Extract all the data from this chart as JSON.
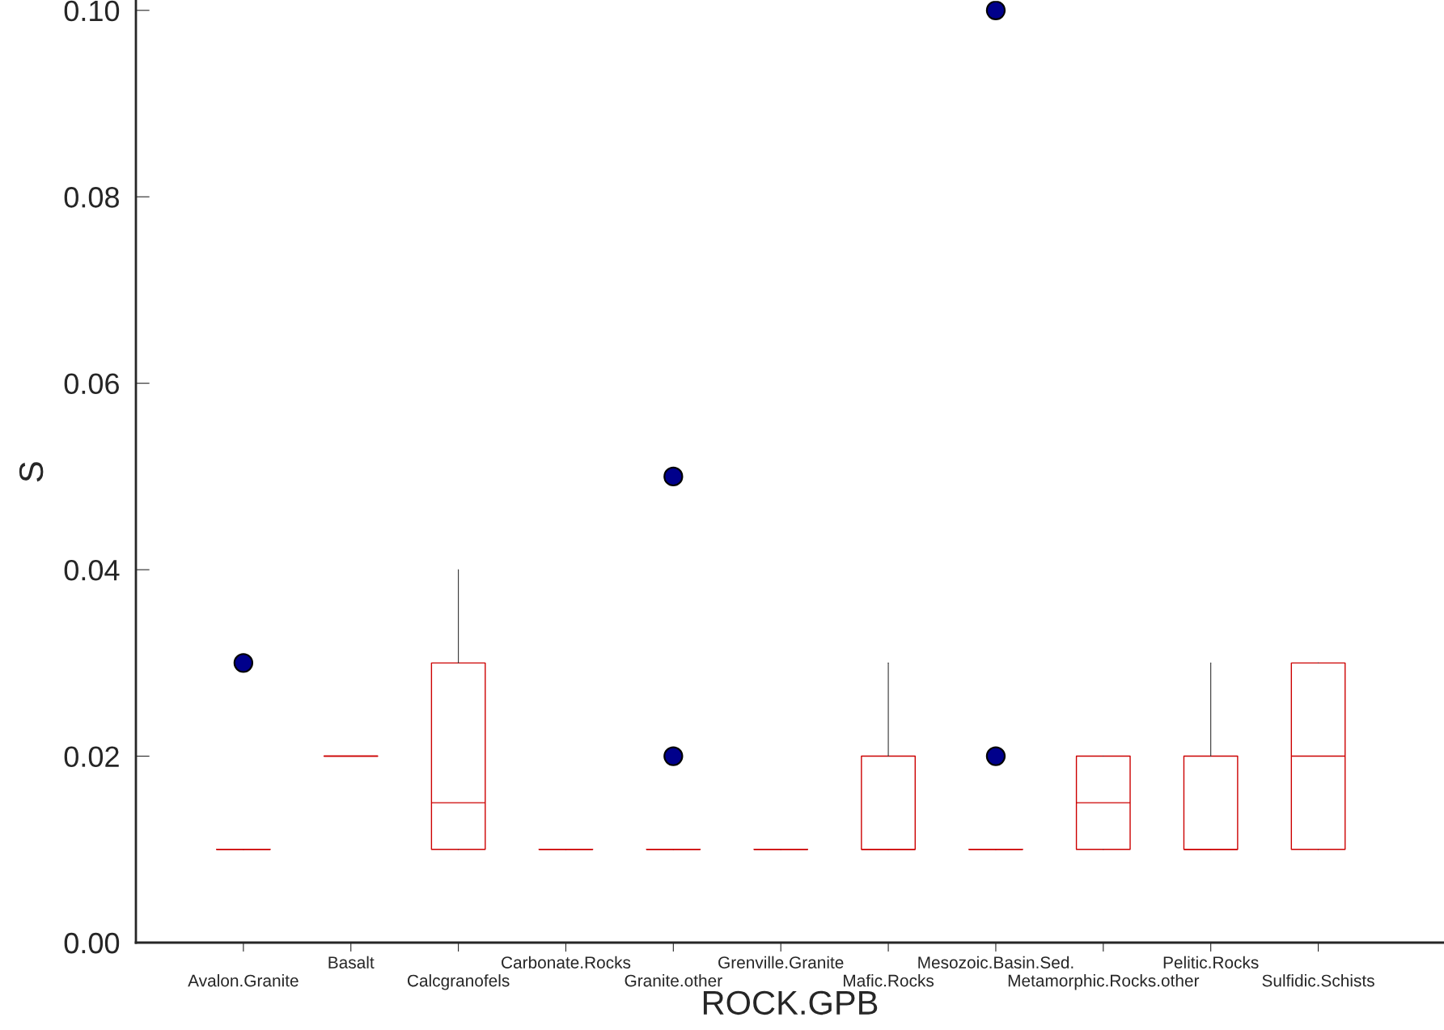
{
  "chart_data": {
    "type": "box",
    "xlabel": "ROCK.GPB",
    "ylabel": "S",
    "categories": [
      "Avalon.Granite",
      "Basalt",
      "Calcgranofels",
      "Carbonate.Rocks",
      "Granite.other",
      "Grenville.Granite",
      "Mafic.Rocks",
      "Mesozoic.Basin.Sed.",
      "Metamorphic.Rocks.other",
      "Pelitic.Rocks",
      "Sulfidic.Schists"
    ],
    "boxes": [
      {
        "low": 0.01,
        "q1": 0.01,
        "median": 0.01,
        "q3": 0.01,
        "high": 0.01,
        "outliers": [
          0.03
        ]
      },
      {
        "low": 0.02,
        "q1": 0.02,
        "median": 0.02,
        "q3": 0.02,
        "high": 0.02
      },
      {
        "low": 0.01,
        "q1": 0.01,
        "median": 0.015,
        "q3": 0.03,
        "high": 0.04
      },
      {
        "low": 0.01,
        "q1": 0.01,
        "median": 0.01,
        "q3": 0.01,
        "high": 0.01
      },
      {
        "low": 0.01,
        "q1": 0.01,
        "median": 0.01,
        "q3": 0.01,
        "high": 0.01,
        "outliers": [
          0.05,
          0.02
        ]
      },
      {
        "low": 0.01,
        "q1": 0.01,
        "median": 0.01,
        "q3": 0.01,
        "high": 0.01
      },
      {
        "low": 0.01,
        "q1": 0.01,
        "median": 0.01,
        "q3": 0.02,
        "high": 0.03
      },
      {
        "low": 0.01,
        "q1": 0.01,
        "median": 0.01,
        "q3": 0.01,
        "high": 0.01,
        "outliers": [
          0.1,
          0.02
        ]
      },
      {
        "low": 0.01,
        "q1": 0.01,
        "median": 0.015,
        "q3": 0.02,
        "high": 0.02
      },
      {
        "low": 0.01,
        "q1": 0.01,
        "median": 0.01,
        "q3": 0.02,
        "high": 0.03
      },
      {
        "low": 0.01,
        "q1": 0.01,
        "median": 0.02,
        "q3": 0.03,
        "high": 0.03
      }
    ],
    "color": "#cc0000",
    "ylim": [
      0,
      0.101
    ],
    "yticks": [
      {
        "value": 0,
        "label": "0.00"
      },
      {
        "value": 0.02,
        "label": "0.02"
      },
      {
        "value": 0.04,
        "label": "0.04"
      },
      {
        "value": 0.06,
        "label": "0.06"
      },
      {
        "value": 0.08,
        "label": "0.08"
      },
      {
        "value": 0.1,
        "label": "0.10"
      }
    ],
    "grid": false,
    "legend": false
  }
}
